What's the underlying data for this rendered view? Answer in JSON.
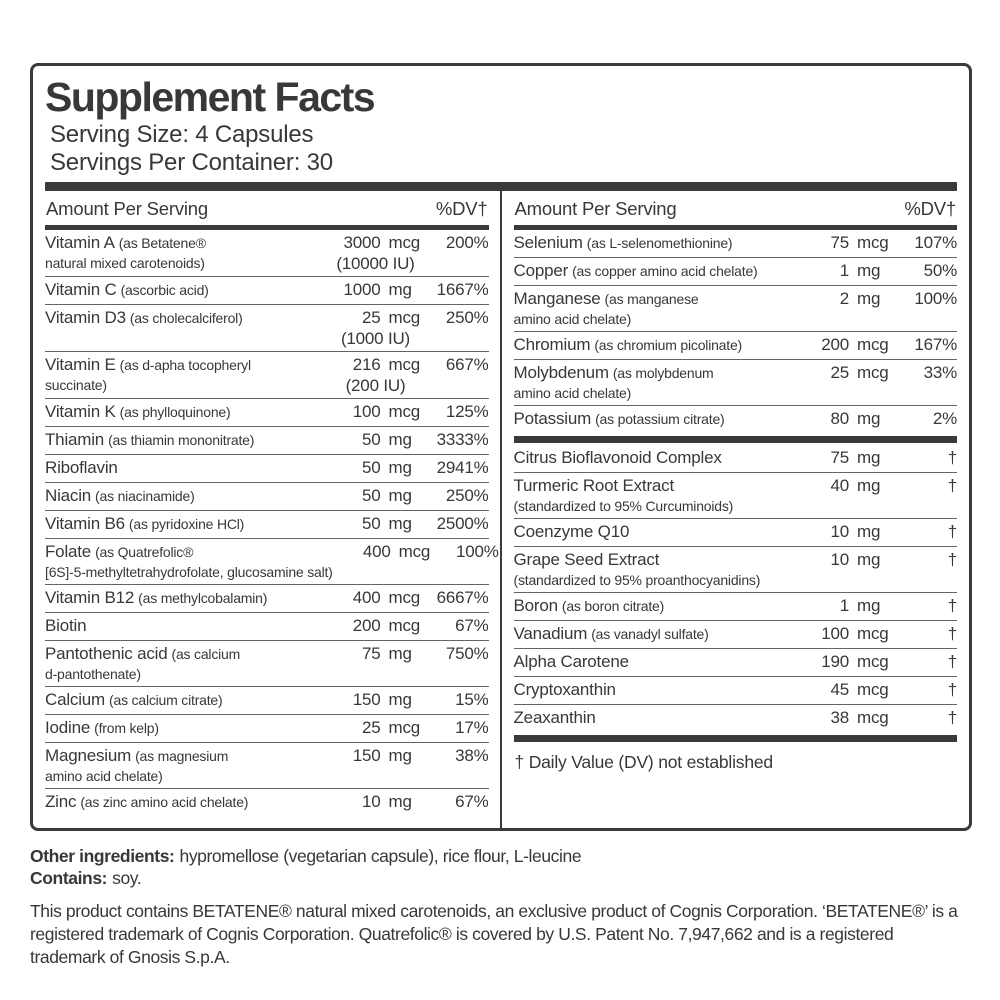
{
  "colors": {
    "ink": "#383838",
    "separator": "#646464"
  },
  "panel": {
    "title": "Supplement Facts",
    "serving_size": "Serving Size: 4 Capsules",
    "servings_per_container": "Servings Per Container: 30",
    "header": {
      "amount_label": "Amount Per Serving",
      "dv_label": "%DV†"
    }
  },
  "columns": {
    "left": {
      "rows": [
        {
          "name_main": "Vitamin A",
          "name_sub": "(as Betatene®",
          "name_line2": "natural mixed carotenoids)",
          "value": "3000",
          "unit": "mcg",
          "value2": "(10000 IU)",
          "dv": "200%"
        },
        {
          "name_main": "Vitamin C",
          "name_sub": "(ascorbic acid)",
          "value": "1000",
          "unit": "mg",
          "dv": "1667%"
        },
        {
          "name_main": "Vitamin D3",
          "name_sub": "(as cholecalciferol)",
          "value": "25",
          "unit": "mcg",
          "value2": "(1000 IU)",
          "dv": "250%"
        },
        {
          "name_main": "Vitamin E",
          "name_sub": "(as d-apha tocopheryl",
          "name_line2": "succinate)",
          "value": "216",
          "unit": "mcg",
          "value2": "(200 IU)",
          "dv": "667%"
        },
        {
          "name_main": "Vitamin K",
          "name_sub": "(as phylloquinone)",
          "value": "100",
          "unit": "mcg",
          "dv": "125%"
        },
        {
          "name_main": "Thiamin",
          "name_sub": "(as thiamin mononitrate)",
          "value": "50",
          "unit": "mg",
          "dv": "3333%"
        },
        {
          "name_main": "Riboflavin",
          "value": "50",
          "unit": "mg",
          "dv": "2941%"
        },
        {
          "name_main": "Niacin",
          "name_sub": "(as niacinamide)",
          "value": "50",
          "unit": "mg",
          "dv": "250%"
        },
        {
          "name_main": "Vitamin B6",
          "name_sub": "(as pyridoxine HCl)",
          "value": "50",
          "unit": "mg",
          "dv": "2500%"
        },
        {
          "name_main": "Folate",
          "name_sub": "(as Quatrefolic®",
          "name_line2": "[6S]-5-methyltetrahydrofolate, glucosamine salt)",
          "value": "400",
          "unit": "mcg",
          "dv": "100%"
        },
        {
          "name_main": "Vitamin B12",
          "name_sub": "(as methylcobalamin)",
          "value": "400",
          "unit": "mcg",
          "dv": "6667%"
        },
        {
          "name_main": "Biotin",
          "value": "200",
          "unit": "mcg",
          "dv": "67%"
        },
        {
          "name_main": "Pantothenic acid",
          "name_sub": "(as calcium",
          "name_line2": "d-pantothenate)",
          "value": "75",
          "unit": "mg",
          "dv": "750%"
        },
        {
          "name_main": "Calcium",
          "name_sub": "(as calcium citrate)",
          "value": "150",
          "unit": "mg",
          "dv": "15%"
        },
        {
          "name_main": "Iodine",
          "name_sub": "(from kelp)",
          "value": "25",
          "unit": "mcg",
          "dv": "17%"
        },
        {
          "name_main": "Magnesium",
          "name_sub": "(as magnesium",
          "name_line2": "amino acid chelate)",
          "value": "150",
          "unit": "mg",
          "dv": "38%"
        },
        {
          "name_main": "Zinc",
          "name_sub": "(as zinc amino acid chelate)",
          "value": "10",
          "unit": "mg",
          "dv": "67%"
        }
      ]
    },
    "right_top": {
      "rows": [
        {
          "name_main": "Selenium",
          "name_sub": "(as L-selenomethionine)",
          "value": "75",
          "unit": "mcg",
          "dv": "107%"
        },
        {
          "name_main": "Copper",
          "name_sub": "(as copper amino acid chelate)",
          "value": "1",
          "unit": "mg",
          "dv": "50%"
        },
        {
          "name_main": "Manganese",
          "name_sub": "(as manganese",
          "name_line2": "amino acid chelate)",
          "value": "2",
          "unit": "mg",
          "dv": "100%"
        },
        {
          "name_main": "Chromium",
          "name_sub": "(as chromium picolinate)",
          "value": "200",
          "unit": "mcg",
          "dv": "167%"
        },
        {
          "name_main": "Molybdenum",
          "name_sub": "(as molybdenum",
          "name_line2": "amino acid chelate)",
          "value": "25",
          "unit": "mcg",
          "dv": "33%"
        },
        {
          "name_main": "Potassium",
          "name_sub": "(as potassium citrate)",
          "value": "80",
          "unit": "mg",
          "dv": "2%"
        }
      ]
    },
    "right_bottom": {
      "rows": [
        {
          "name_main": "Citrus Bioflavonoid Complex",
          "value": "75",
          "unit": "mg",
          "dv": "†"
        },
        {
          "name_main": "Turmeric Root Extract",
          "name_line2": "(standardized to 95% Curcuminoids)",
          "value": "40",
          "unit": "mg",
          "dv": "†"
        },
        {
          "name_main": "Coenzyme Q10",
          "value": "10",
          "unit": "mg",
          "dv": "†"
        },
        {
          "name_main": "Grape Seed Extract",
          "name_line2": "(standardized to 95% proanthocyanidins)",
          "value": "10",
          "unit": "mg",
          "dv": "†"
        },
        {
          "name_main": "Boron",
          "name_sub": "(as boron citrate)",
          "value": "1",
          "unit": "mg",
          "dv": "†"
        },
        {
          "name_main": "Vanadium",
          "name_sub": "(as vanadyl sulfate)",
          "value": "100",
          "unit": "mcg",
          "dv": "†"
        },
        {
          "name_main": "Alpha Carotene",
          "value": "190",
          "unit": "mcg",
          "dv": "†"
        },
        {
          "name_main": "Cryptoxanthin",
          "value": "45",
          "unit": "mcg",
          "dv": "†"
        },
        {
          "name_main": "Zeaxanthin",
          "value": "38",
          "unit": "mcg",
          "dv": "†"
        }
      ]
    }
  },
  "footnote": "† Daily Value (DV) not established",
  "footer": {
    "other_ingredients_label": "Other ingredients:",
    "other_ingredients_text": "hypromellose (vegetarian capsule), rice flour, L-leucine",
    "contains_label": "Contains:",
    "contains_text": "soy.",
    "disclaimer": "This product contains BETATENE® natural mixed carotenoids, an exclusive product of Cognis Corporation. ‘BETATENE®’ is a registered trademark of Cognis Corporation. Quatrefolic® is covered by U.S. Patent No. 7,947,662 and is a registered trademark of Gnosis S.p.A."
  }
}
